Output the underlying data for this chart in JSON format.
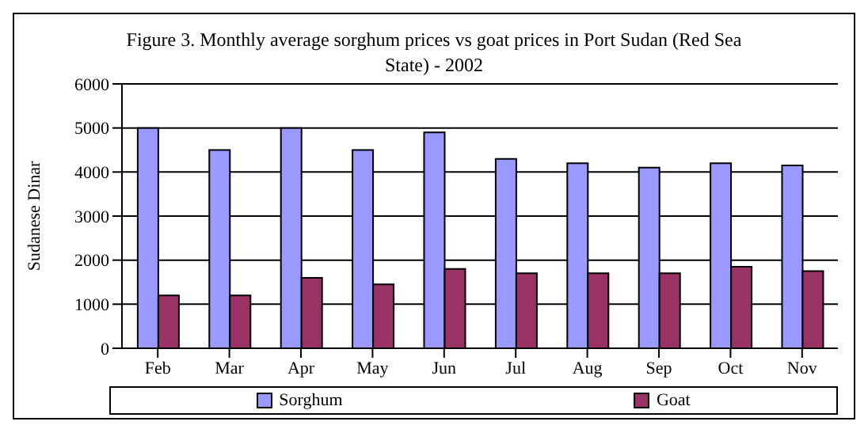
{
  "chart_data": {
    "type": "bar",
    "title": "Figure 3. Monthly average sorghum prices vs goat prices in Port Sudan (Red Sea State) - 2002",
    "ylabel": "Sudanese Dinar",
    "categories": [
      "Feb",
      "Mar",
      "Apr",
      "May",
      "Jun",
      "Jul",
      "Aug",
      "Sep",
      "Oct",
      "Nov"
    ],
    "series": [
      {
        "name": "Sorghum",
        "color": "#9999ff",
        "values": [
          5000,
          4500,
          5000,
          4500,
          4900,
          4300,
          4200,
          4100,
          4200,
          4150
        ]
      },
      {
        "name": "Goat",
        "color": "#993366",
        "values": [
          1200,
          1200,
          1600,
          1450,
          1800,
          1700,
          1700,
          1700,
          1850,
          1750
        ]
      }
    ],
    "ylim": [
      0,
      6000
    ],
    "yticks": [
      0,
      1000,
      2000,
      3000,
      4000,
      5000,
      6000
    ],
    "grid": "y",
    "legend": "bottom"
  }
}
